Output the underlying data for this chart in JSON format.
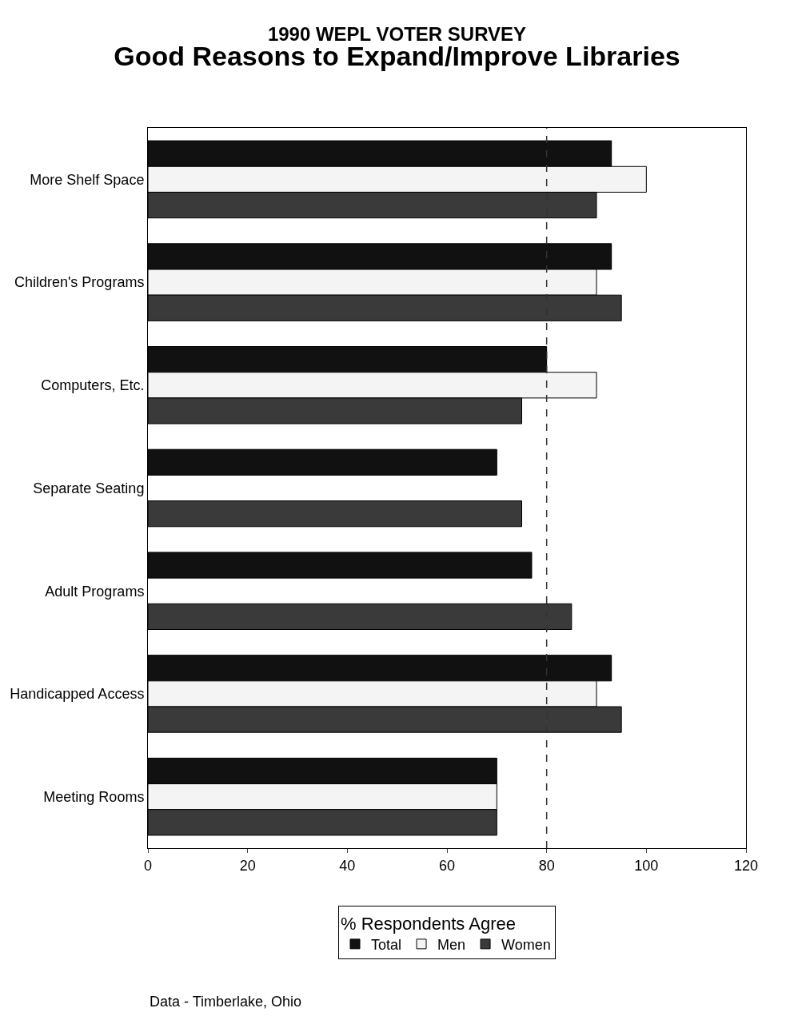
{
  "chart_data": {
    "type": "bar",
    "orientation": "horizontal",
    "title": "1990 WEPL VOTER SURVEY",
    "subtitle": "Good Reasons to Expand/Improve Libraries",
    "categories": [
      "More Shelf Space",
      "Children's Programs",
      "Computers, Etc.",
      "Separate Seating",
      "Adult Programs",
      "Handicapped Access",
      "Meeting Rooms"
    ],
    "series": [
      {
        "name": "Total",
        "color": "#111111",
        "values": [
          93,
          93,
          80,
          70,
          77,
          93,
          70
        ]
      },
      {
        "name": "Men",
        "color": "#f4f4f4",
        "values": [
          100,
          90,
          90,
          null,
          null,
          90,
          70
        ]
      },
      {
        "name": "Women",
        "color": "#3a3a3a",
        "values": [
          90,
          95,
          75,
          75,
          85,
          95,
          70
        ]
      }
    ],
    "xlim": [
      0,
      120
    ],
    "xticks": [
      0,
      20,
      40,
      60,
      80,
      100,
      120
    ],
    "legend_title": "% Respondents Agree",
    "legend": "bottom",
    "ref_lines": [
      {
        "axis": "x",
        "value": 80,
        "line_style": "dashed",
        "color": "#333333"
      }
    ],
    "annotations": [
      "Data - Timberlake, Ohio"
    ]
  }
}
